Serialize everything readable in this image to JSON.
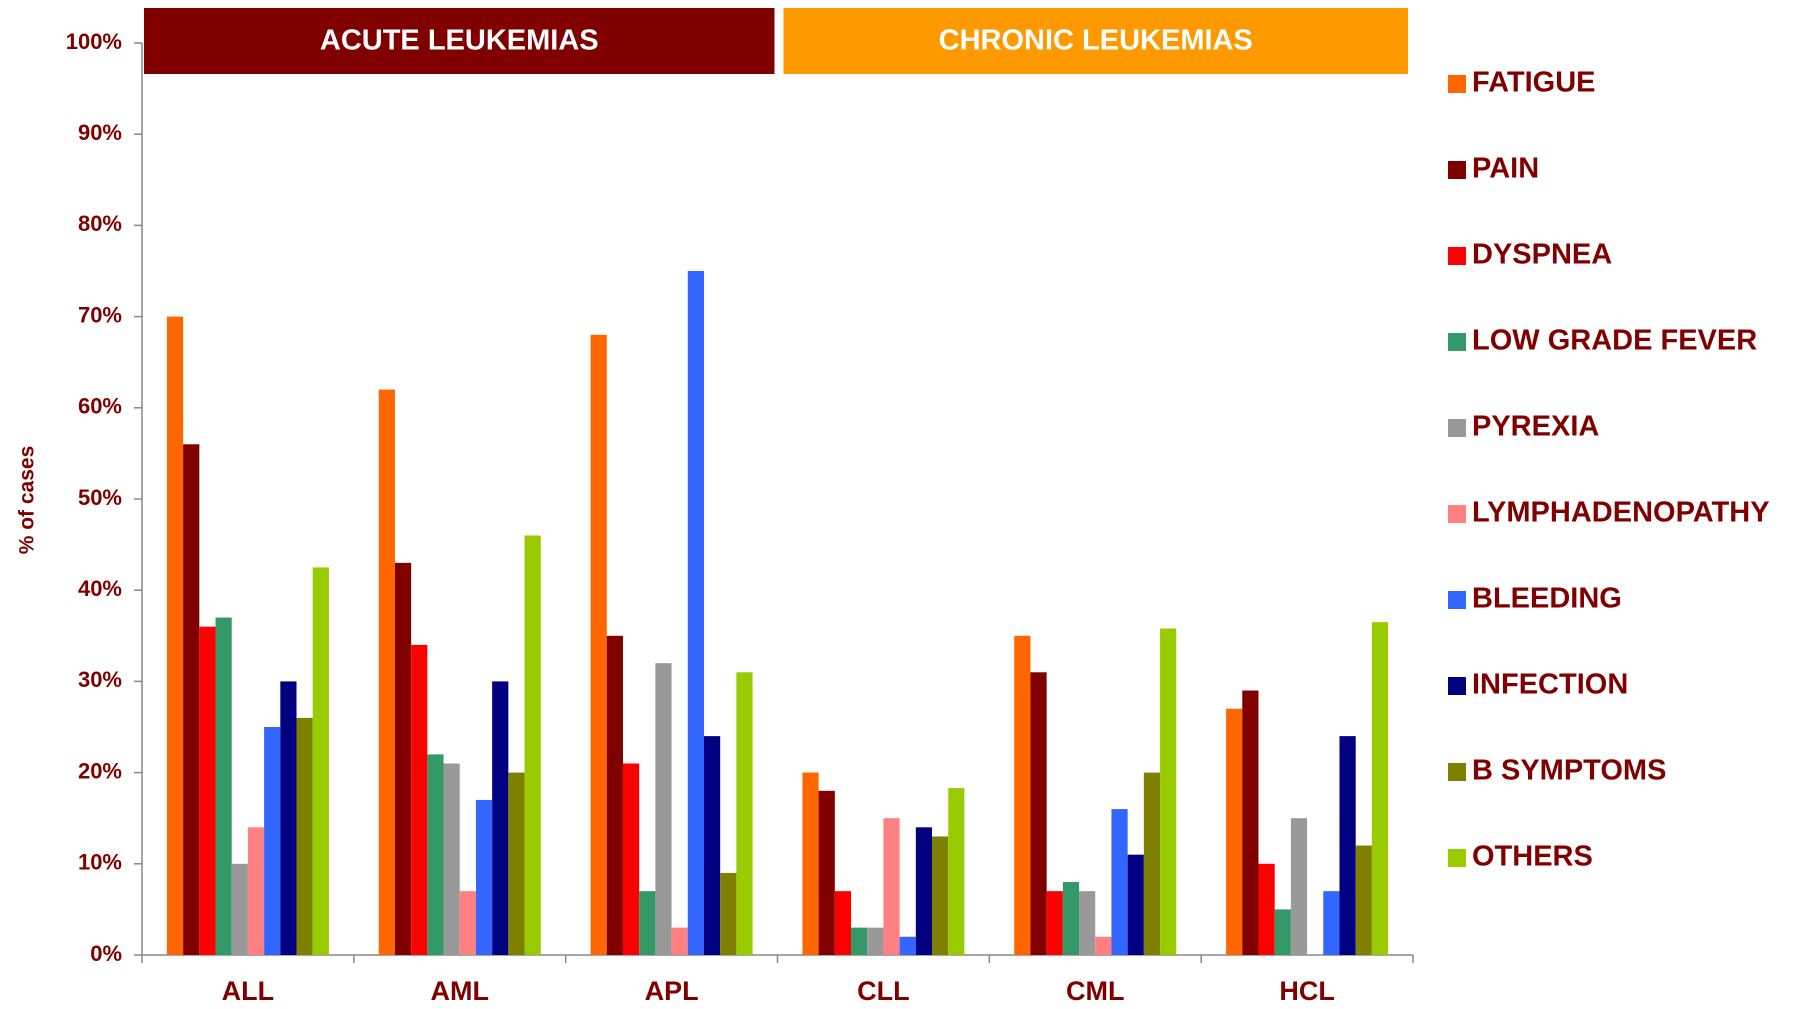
{
  "chart_data": {
    "type": "bar",
    "ylabel": "% of cases",
    "group_labels": [
      {
        "text": "ACUTE LEUKEMIAS",
        "color": "#800000",
        "categories": [
          0,
          2
        ]
      },
      {
        "text": "CHRONIC LEUKEMIAS",
        "color": "#ff9900",
        "categories": [
          3,
          5
        ]
      }
    ],
    "categories": [
      "ALL",
      "AML",
      "APL",
      "CLL",
      "CML",
      "HCL"
    ],
    "series": [
      {
        "name": "FATIGUE",
        "color": "#ff6600",
        "values": [
          70,
          62,
          68,
          20,
          35,
          27
        ]
      },
      {
        "name": "PAIN",
        "color": "#800000",
        "values": [
          56,
          43,
          35,
          18,
          31,
          29
        ]
      },
      {
        "name": "DYSPNEA",
        "color": "#ff0000",
        "values": [
          36,
          34,
          21,
          7,
          7,
          10
        ]
      },
      {
        "name": "LOW GRADE FEVER",
        "color": "#339966",
        "values": [
          37,
          22,
          7,
          3,
          8,
          5
        ]
      },
      {
        "name": "PYREXIA",
        "color": "#999999",
        "values": [
          10,
          21,
          32,
          3,
          7,
          15
        ]
      },
      {
        "name": "LYMPHADENOPATHY",
        "color": "#ff8080",
        "values": [
          14,
          7,
          3,
          15,
          2,
          0
        ]
      },
      {
        "name": "BLEEDING",
        "color": "#3366ff",
        "values": [
          25,
          17,
          75,
          2,
          16,
          7
        ]
      },
      {
        "name": "INFECTION",
        "color": "#000080",
        "values": [
          30,
          30,
          24,
          14,
          11,
          24
        ]
      },
      {
        "name": "B SYMPTOMS",
        "color": "#808000",
        "values": [
          26,
          20,
          9,
          13,
          20,
          12
        ]
      },
      {
        "name": "OTHERS",
        "color": "#99cc00",
        "values": [
          42.5,
          46,
          31,
          18.3,
          35.8,
          36.5
        ]
      }
    ],
    "ylim": [
      0,
      100
    ],
    "yticks": [
      {
        "value": 0,
        "label": "0%"
      },
      {
        "value": 10,
        "label": "10%"
      },
      {
        "value": 20,
        "label": "20%"
      },
      {
        "value": 30,
        "label": "30%"
      },
      {
        "value": 40,
        "label": "40%"
      },
      {
        "value": 50,
        "label": "50%"
      },
      {
        "value": 60,
        "label": "60%"
      },
      {
        "value": 70,
        "label": "70%"
      },
      {
        "value": 80,
        "label": "80%"
      },
      {
        "value": 90,
        "label": "90%"
      },
      {
        "value": 100,
        "label": "100%"
      }
    ],
    "legend": "right"
  }
}
